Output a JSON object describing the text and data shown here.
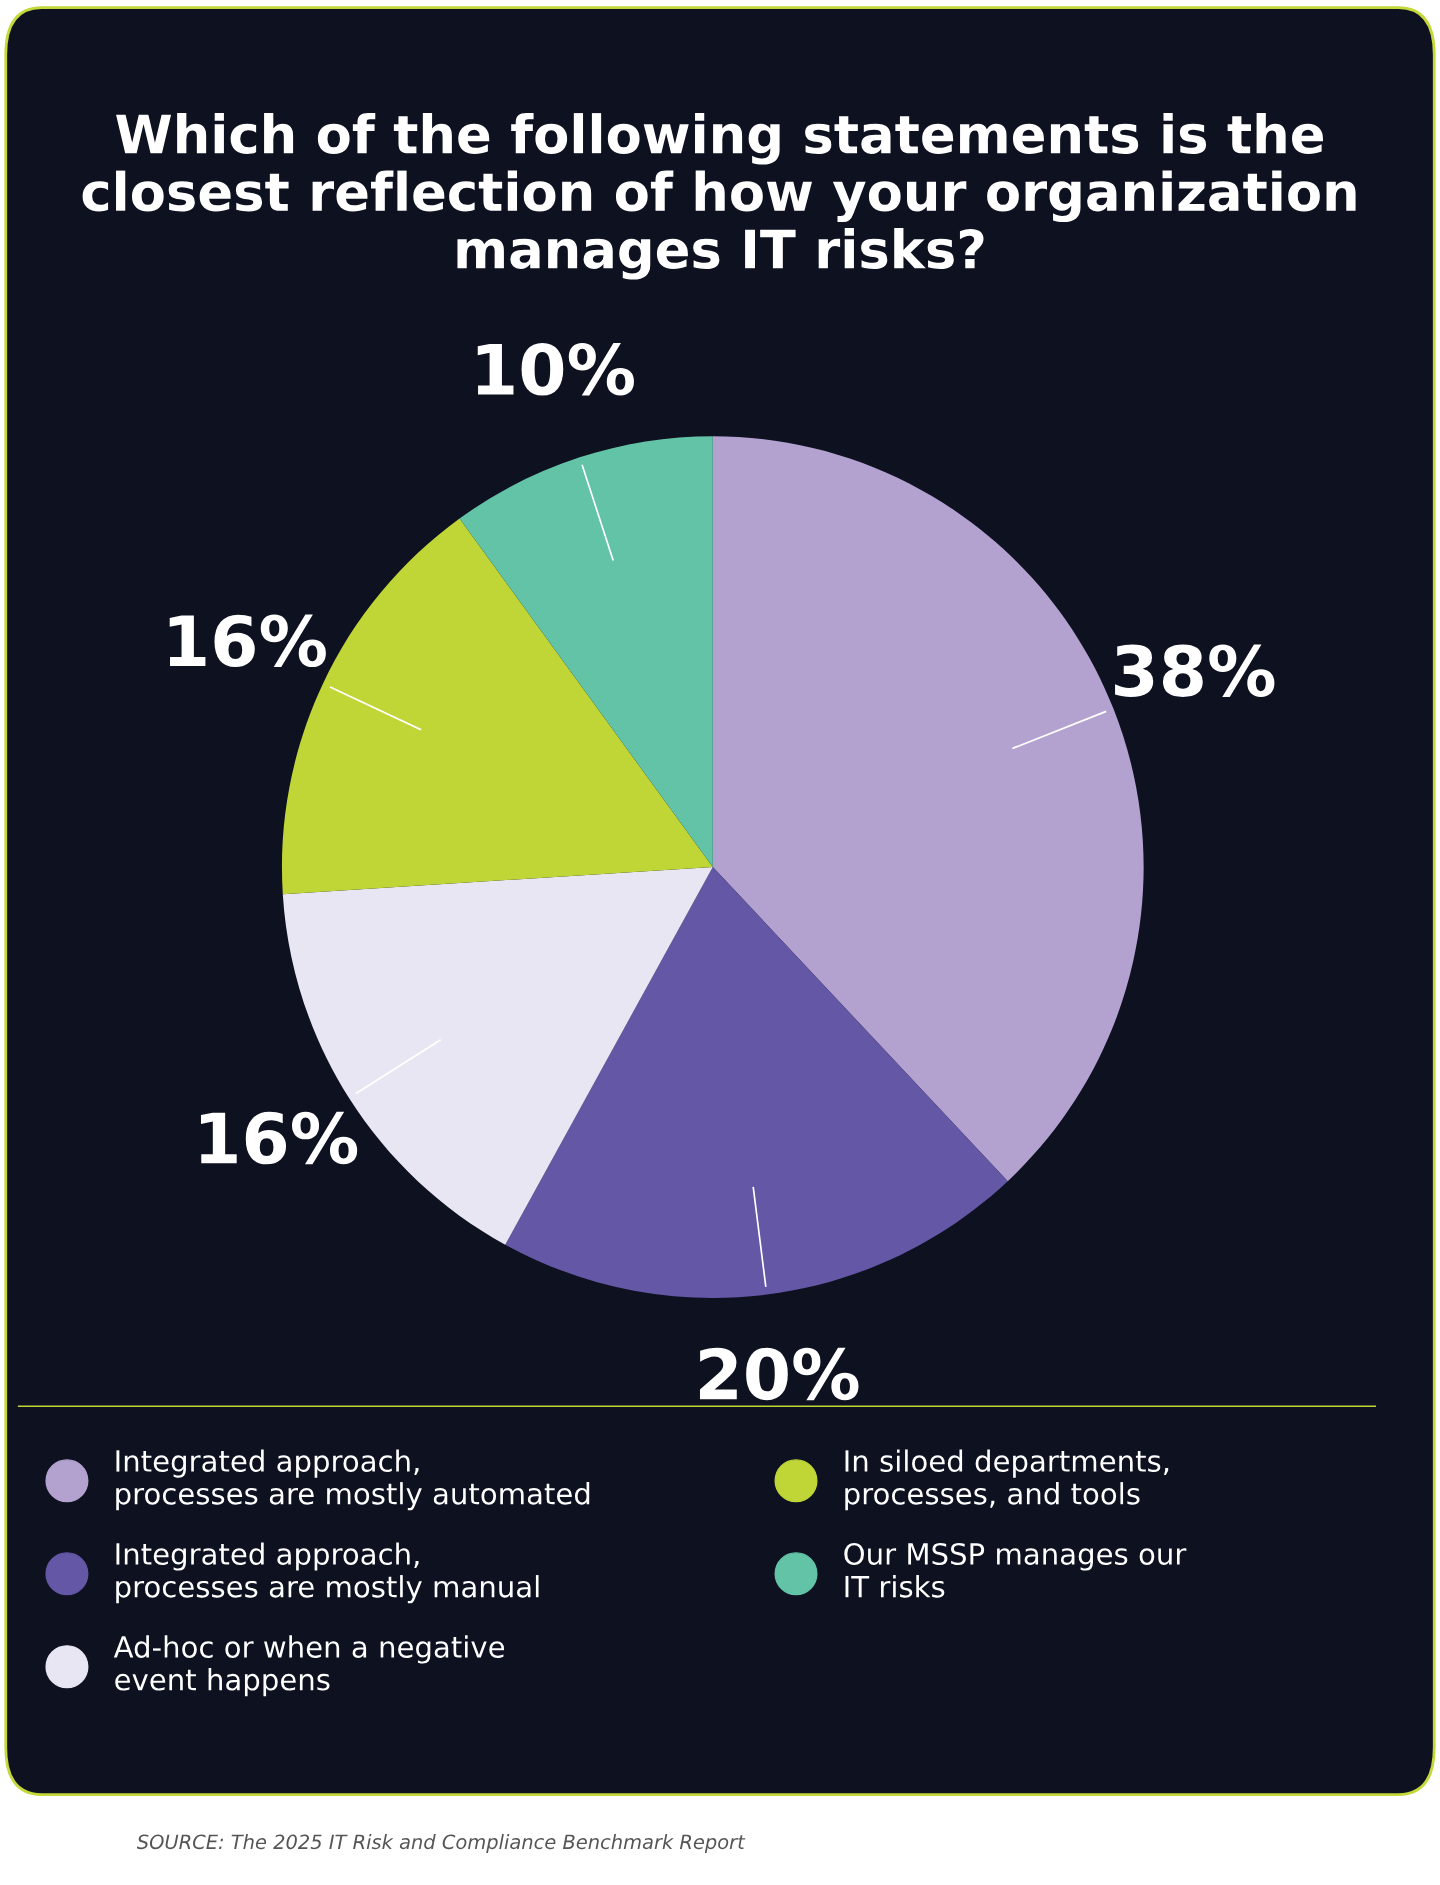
{
  "chart_data": {
    "type": "pie",
    "title": "Which of the following statements is the\nclosest reflection of how your organization\nmanages IT risks?",
    "categories": [
      "Integrated approach,\nprocesses are mostly automated",
      "Integrated approach,\nprocesses are mostly manual",
      "Ad-hoc or when a negative\nevent happens",
      "In siloed departments,\nprocesses, and tools",
      "Our MSSP manages our\nIT risks"
    ],
    "values": [
      38,
      20,
      16,
      16,
      10
    ],
    "colors": [
      "#b3a2d0",
      "#6457a6",
      "#e9e6f3",
      "#bfd636",
      "#63c3a7"
    ],
    "value_labels": [
      "38%",
      "20%",
      "16%",
      "16%",
      "10%"
    ],
    "legend": "bottom",
    "annotations": [
      "SOURCE: The 2025 IT Risk and Compliance Benchmark Report"
    ]
  }
}
